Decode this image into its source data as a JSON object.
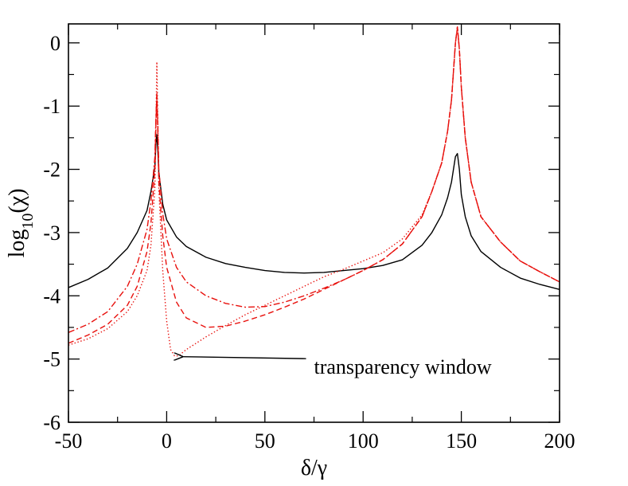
{
  "chart_data": {
    "type": "line",
    "xlabel": "δ/γ",
    "ylabel_base": "log",
    "ylabel_sub": "10",
    "ylabel_arg": "(χ)",
    "xlim": [
      -50,
      200
    ],
    "ylim": [
      -6,
      0.3
    ],
    "x_ticks": [
      -50,
      0,
      50,
      100,
      150,
      200
    ],
    "x_tick_labels": [
      "-50",
      "0",
      "50",
      "100",
      "150",
      "200"
    ],
    "y_ticks": [
      -6,
      -5,
      -4,
      -3,
      -2,
      -1,
      0
    ],
    "y_tick_labels": [
      "-6",
      "-5",
      "-4",
      "-3",
      "-2",
      "-1",
      "0"
    ],
    "grid": false,
    "series": [
      {
        "color": "#000000",
        "dash": "solid",
        "x": [
          -50,
          -40,
          -30,
          -20,
          -15,
          -10,
          -8,
          -6,
          -5.5,
          -5,
          -4.5,
          -4,
          -2,
          0,
          5,
          10,
          20,
          30,
          40,
          50,
          60,
          70,
          80,
          90,
          100,
          110,
          120,
          130,
          135,
          140,
          143,
          145,
          146,
          147,
          148,
          149,
          150,
          152,
          155,
          160,
          170,
          180,
          190,
          200
        ],
        "y": [
          -3.87,
          -3.74,
          -3.56,
          -3.25,
          -3.0,
          -2.65,
          -2.35,
          -1.95,
          -1.6,
          -1.45,
          -1.7,
          -2.05,
          -2.55,
          -2.8,
          -3.07,
          -3.22,
          -3.39,
          -3.49,
          -3.55,
          -3.6,
          -3.63,
          -3.64,
          -3.63,
          -3.6,
          -3.57,
          -3.52,
          -3.43,
          -3.2,
          -3.0,
          -2.72,
          -2.45,
          -2.2,
          -2.0,
          -1.8,
          -1.75,
          -2.0,
          -2.4,
          -2.75,
          -3.05,
          -3.3,
          -3.55,
          -3.72,
          -3.82,
          -3.9
        ]
      },
      {
        "color": "#e8100c",
        "dash": "dashdot",
        "x": [
          -50,
          -40,
          -30,
          -20,
          -15,
          -10,
          -8,
          -6,
          -5.5,
          -5,
          -4.5,
          -4,
          -2,
          0,
          5,
          10,
          20,
          30,
          40,
          50,
          60,
          70,
          80,
          90,
          100,
          110,
          120,
          130,
          135,
          140,
          143,
          145,
          146,
          147,
          148,
          149,
          150,
          152,
          155,
          160,
          170,
          180,
          190,
          200
        ],
        "y": [
          -4.58,
          -4.45,
          -4.25,
          -3.85,
          -3.5,
          -2.95,
          -2.5,
          -1.8,
          -1.2,
          -0.8,
          -1.3,
          -2.0,
          -2.7,
          -3.1,
          -3.55,
          -3.78,
          -4.0,
          -4.12,
          -4.18,
          -4.17,
          -4.1,
          -4.0,
          -3.88,
          -3.75,
          -3.6,
          -3.43,
          -3.18,
          -2.75,
          -2.35,
          -1.9,
          -1.4,
          -0.9,
          -0.45,
          0.0,
          0.25,
          -0.1,
          -0.7,
          -1.5,
          -2.2,
          -2.75,
          -3.15,
          -3.45,
          -3.62,
          -3.78
        ]
      },
      {
        "color": "#e8100c",
        "dash": "dashed",
        "x": [
          -50,
          -40,
          -30,
          -20,
          -15,
          -10,
          -8,
          -6,
          -5.5,
          -5,
          -4.5,
          -4,
          -2,
          0,
          5,
          10,
          20,
          30,
          40,
          50,
          60,
          70,
          80,
          90,
          100,
          110,
          120,
          130,
          135,
          140,
          143,
          145,
          146,
          147,
          148,
          149,
          150,
          152,
          155,
          160,
          170,
          180,
          190,
          200
        ],
        "y": [
          -4.75,
          -4.62,
          -4.45,
          -4.15,
          -3.85,
          -3.3,
          -2.85,
          -2.0,
          -1.3,
          -0.85,
          -1.4,
          -2.2,
          -3.05,
          -3.55,
          -4.1,
          -4.35,
          -4.5,
          -4.48,
          -4.4,
          -4.3,
          -4.18,
          -4.05,
          -3.9,
          -3.75,
          -3.6,
          -3.43,
          -3.18,
          -2.75,
          -2.35,
          -1.9,
          -1.4,
          -0.9,
          -0.45,
          0.0,
          0.25,
          -0.1,
          -0.7,
          -1.5,
          -2.2,
          -2.75,
          -3.15,
          -3.45,
          -3.62,
          -3.78
        ]
      },
      {
        "color": "#e8100c",
        "dash": "dotted",
        "x": [
          -50,
          -40,
          -30,
          -20,
          -15,
          -10,
          -8,
          -6,
          -5.5,
          -5,
          -4.5,
          -4,
          -2,
          0,
          2,
          4,
          6,
          8,
          10,
          15,
          20,
          30,
          40,
          50,
          60,
          70,
          80,
          90,
          100,
          110,
          120,
          130,
          135,
          140,
          143,
          145,
          146,
          147,
          148,
          149,
          150,
          152,
          155,
          160,
          170,
          180,
          190,
          200
        ],
        "y": [
          -4.78,
          -4.68,
          -4.52,
          -4.25,
          -4.0,
          -3.6,
          -3.2,
          -2.3,
          -1.4,
          -0.3,
          -1.2,
          -2.3,
          -3.6,
          -4.4,
          -4.85,
          -4.95,
          -4.95,
          -4.9,
          -4.85,
          -4.75,
          -4.65,
          -4.47,
          -4.3,
          -4.15,
          -4.0,
          -3.85,
          -3.7,
          -3.58,
          -3.45,
          -3.32,
          -3.1,
          -2.72,
          -2.35,
          -1.9,
          -1.4,
          -0.9,
          -0.45,
          0.0,
          0.25,
          -0.1,
          -0.7,
          -1.5,
          -2.2,
          -2.75,
          -3.15,
          -3.45,
          -3.62,
          -3.78
        ]
      }
    ],
    "annotations": [
      {
        "text": "transparency window",
        "arrow_to": [
          6,
          -4.95
        ],
        "text_at": [
          75,
          -5.12
        ]
      }
    ]
  }
}
